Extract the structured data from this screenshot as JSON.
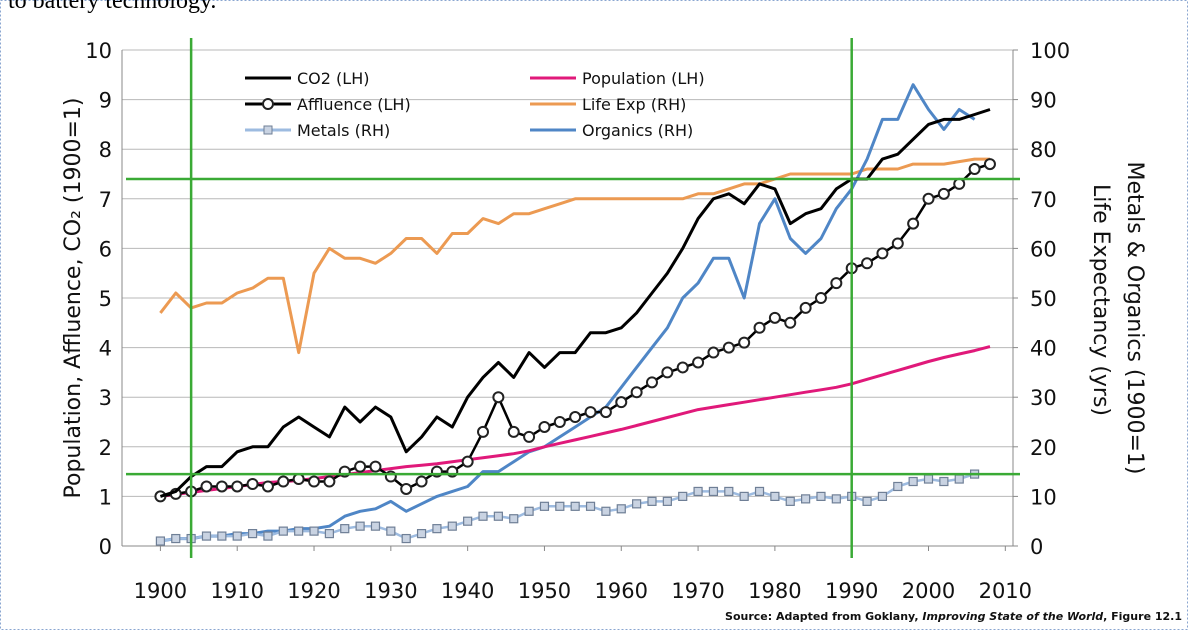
{
  "header_text": "to battery technology.",
  "chart_data": {
    "type": "line",
    "ylabel": "Population, Affluence, CO₂ (1900=1)",
    "y2label": [
      "Metals & Organics (1900=1)",
      "Life Expectancy  (yrs)"
    ],
    "source": {
      "prefix": "Source: Adapted from Goklany, ",
      "italic": "Improving State of the World",
      "suffix": ", Figure 12.1"
    },
    "x": [
      1900,
      1902,
      1904,
      1906,
      1908,
      1910,
      1912,
      1914,
      1916,
      1918,
      1920,
      1922,
      1924,
      1926,
      1928,
      1930,
      1932,
      1934,
      1936,
      1938,
      1940,
      1942,
      1944,
      1946,
      1948,
      1950,
      1952,
      1954,
      1956,
      1958,
      1960,
      1962,
      1964,
      1966,
      1968,
      1970,
      1972,
      1974,
      1976,
      1978,
      1980,
      1982,
      1984,
      1986,
      1988,
      1990,
      1992,
      1994,
      1996,
      1998,
      2000,
      2002,
      2004,
      2006,
      2008
    ],
    "xlim": [
      1895,
      2011
    ],
    "xticks": [
      1900,
      1910,
      1920,
      1930,
      1940,
      1950,
      1960,
      1970,
      1980,
      1990,
      2000,
      2010
    ],
    "ylim": [
      0,
      10
    ],
    "yticks": [
      0,
      1,
      2,
      3,
      4,
      5,
      6,
      7,
      8,
      9,
      10
    ],
    "y2lim": [
      0,
      100
    ],
    "y2ticks": [
      0,
      10,
      20,
      30,
      40,
      50,
      60,
      70,
      80,
      90,
      100
    ],
    "grid": true,
    "reference_lines": {
      "color": "#3aaa35",
      "x": [
        1904,
        1990
      ],
      "y": [
        7.4,
        1.45
      ]
    },
    "series": [
      {
        "name": "CO2 (LH)",
        "color": "#000000",
        "values": [
          1.0,
          1.1,
          1.4,
          1.6,
          1.6,
          1.9,
          2.0,
          2.0,
          2.4,
          2.6,
          2.4,
          2.2,
          2.8,
          2.5,
          2.8,
          2.6,
          1.9,
          2.2,
          2.6,
          2.4,
          3.0,
          3.4,
          3.7,
          3.4,
          3.9,
          3.6,
          3.9,
          3.9,
          4.3,
          4.3,
          4.4,
          4.7,
          5.1,
          5.5,
          6.0,
          6.6,
          7.0,
          7.1,
          6.9,
          7.3,
          7.2,
          6.5,
          6.7,
          6.8,
          7.2,
          7.4,
          7.4,
          7.8,
          7.9,
          8.2,
          8.5,
          8.6,
          8.6,
          8.7,
          8.8
        ]
      },
      {
        "name": "Affluence (LH)",
        "color": "#000000",
        "marker": "circle",
        "values": [
          1.0,
          1.05,
          1.1,
          1.2,
          1.2,
          1.2,
          1.25,
          1.2,
          1.3,
          1.35,
          1.3,
          1.3,
          1.5,
          1.6,
          1.6,
          1.4,
          1.15,
          1.3,
          1.5,
          1.5,
          1.7,
          2.3,
          3.0,
          2.3,
          2.2,
          2.4,
          2.5,
          2.6,
          2.7,
          2.7,
          2.9,
          3.1,
          3.3,
          3.5,
          3.6,
          3.7,
          3.9,
          4.0,
          4.1,
          4.4,
          4.6,
          4.5,
          4.8,
          5.0,
          5.3,
          5.6,
          5.7,
          5.9,
          6.1,
          6.5,
          7.0,
          7.1,
          7.3,
          7.6,
          7.7
        ]
      },
      {
        "name": "Metals (RH)",
        "color": "#9dbbe0",
        "marker": "square",
        "axis": "y2",
        "values": [
          1,
          1.5,
          1.5,
          2,
          2,
          2,
          2.5,
          2,
          3,
          3,
          3,
          2.5,
          3.5,
          4,
          4,
          3,
          1.5,
          2.5,
          3.5,
          4,
          5,
          6,
          6,
          5.5,
          7,
          8,
          8,
          8,
          8,
          7,
          7.5,
          8.5,
          9,
          9,
          10,
          11,
          11,
          11,
          10,
          11,
          10,
          9,
          9.5,
          10,
          9.5,
          10,
          9,
          10,
          12,
          13,
          13.5,
          13,
          13.5,
          14.5,
          null
        ]
      },
      {
        "name": "Population (LH)",
        "color": "#e0197a",
        "values": [
          1.0,
          1.04,
          1.08,
          1.12,
          1.16,
          1.2,
          1.24,
          1.28,
          1.3,
          1.32,
          1.36,
          1.4,
          1.44,
          1.48,
          1.52,
          1.56,
          1.6,
          1.63,
          1.66,
          1.7,
          1.74,
          1.78,
          1.82,
          1.86,
          1.92,
          2.0,
          2.07,
          2.14,
          2.21,
          2.28,
          2.35,
          2.43,
          2.51,
          2.59,
          2.67,
          2.75,
          2.8,
          2.85,
          2.9,
          2.95,
          3.0,
          3.05,
          3.1,
          3.15,
          3.2,
          3.27,
          3.36,
          3.45,
          3.54,
          3.63,
          3.72,
          3.8,
          3.87,
          3.94,
          4.02
        ]
      },
      {
        "name": "Life Exp (RH)",
        "color": "#ec9a52",
        "axis": "y2",
        "values": [
          47,
          51,
          48,
          49,
          49,
          51,
          52,
          54,
          54,
          39,
          55,
          60,
          58,
          58,
          57,
          59,
          62,
          62,
          59,
          63,
          63,
          66,
          65,
          67,
          67,
          68,
          69,
          70,
          70,
          70,
          70,
          70,
          70,
          70,
          70,
          71,
          71,
          72,
          73,
          73,
          74,
          75,
          75,
          75,
          75,
          75,
          76,
          76,
          76,
          77,
          77,
          77,
          77.5,
          78,
          78
        ]
      },
      {
        "name": "Organics (RH)",
        "color": "#4f86c6",
        "axis": "y2",
        "values": [
          1,
          1.5,
          1.5,
          2,
          2,
          2.5,
          2.5,
          3,
          3,
          3.5,
          3.5,
          4,
          6,
          7,
          7.5,
          9,
          7,
          8.5,
          10,
          11,
          12,
          15,
          15,
          17,
          19,
          20,
          22,
          24,
          26,
          28,
          32,
          36,
          40,
          44,
          50,
          53,
          58,
          58,
          50,
          65,
          70,
          62,
          59,
          62,
          68,
          72,
          78,
          86,
          86,
          93,
          88,
          84,
          88,
          86,
          null
        ]
      }
    ]
  }
}
